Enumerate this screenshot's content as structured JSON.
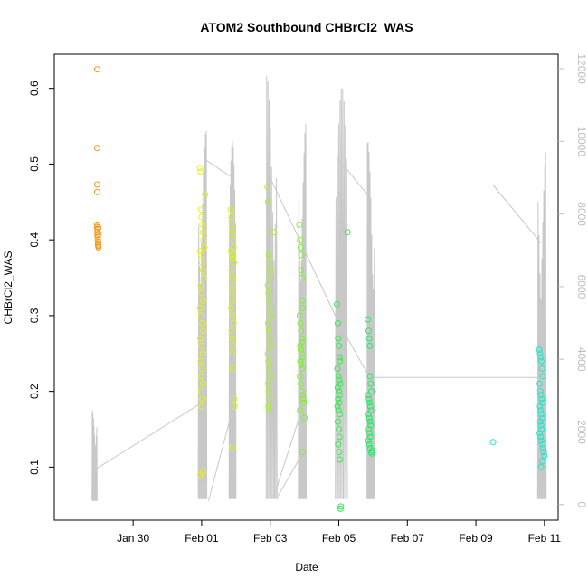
{
  "chart_data": {
    "type": "scatter",
    "title": "ATOM2 Southbound CHBrCl2_WAS",
    "xlabel": "Date",
    "ylabel": "CHBrCl2_WAS",
    "x_unit": "days since Jan 29 00:00",
    "xlim": [
      -1.3,
      13.4
    ],
    "ylim": [
      0.03,
      0.645
    ],
    "y2lim": [
      -430,
      12400
    ],
    "x_ticks": [
      {
        "value": 1,
        "label": "Jan 30"
      },
      {
        "value": 3,
        "label": "Feb 01"
      },
      {
        "value": 5,
        "label": "Feb 03"
      },
      {
        "value": 7,
        "label": "Feb 05"
      },
      {
        "value": 9,
        "label": "Feb 07"
      },
      {
        "value": 11,
        "label": "Feb 09"
      },
      {
        "value": 13,
        "label": "Feb 11"
      }
    ],
    "y_ticks": [
      {
        "value": 0.1,
        "label": "0.1"
      },
      {
        "value": 0.2,
        "label": "0.2"
      },
      {
        "value": 0.3,
        "label": "0.3"
      },
      {
        "value": 0.4,
        "label": "0.4"
      },
      {
        "value": 0.5,
        "label": "0.5"
      },
      {
        "value": 0.6,
        "label": "0.6"
      }
    ],
    "y2_ticks": [
      {
        "value": 0,
        "label": "0"
      },
      {
        "value": 2000,
        "label": "2000"
      },
      {
        "value": 4000,
        "label": "4000"
      },
      {
        "value": 6000,
        "label": "6000"
      },
      {
        "value": 8000,
        "label": "8000"
      },
      {
        "value": 10000,
        "label": "10000"
      },
      {
        "value": 12000,
        "label": "12000"
      }
    ],
    "grid": false,
    "legend": "none",
    "secondary_line_color": "#c8c8c8",
    "series": [
      {
        "color": "#f39a1e",
        "x": [
          -0.05,
          -0.05,
          -0.05,
          -0.05,
          -0.05,
          -0.05,
          -0.04,
          -0.04,
          -0.04,
          -0.03,
          -0.03,
          -0.02,
          -0.02,
          -0.02,
          -0.02,
          -0.01,
          -0.01,
          -0.01
        ],
        "y": [
          0.625,
          0.521,
          0.473,
          0.463,
          0.42,
          0.417,
          0.414,
          0.41,
          0.406,
          0.404,
          0.4,
          0.397,
          0.395,
          0.393,
          0.392,
          0.39,
          0.416,
          0.408
        ]
      },
      {
        "color": "#e9f50a",
        "x": [
          2.95,
          2.97,
          2.98,
          3.0,
          3.02,
          3.03,
          3.05,
          3.07,
          2.96,
          2.99,
          3.01,
          3.04,
          3.06,
          2.97,
          3.0,
          3.03,
          2.95,
          2.98,
          3.02,
          3.05,
          2.96,
          3.0,
          3.04,
          2.97,
          3.01,
          2.98,
          3.03,
          2.99,
          3.02,
          3.0,
          3.1,
          2.96,
          3.04
        ],
        "y": [
          0.495,
          0.49,
          0.44,
          0.43,
          0.42,
          0.41,
          0.4,
          0.39,
          0.385,
          0.38,
          0.37,
          0.36,
          0.35,
          0.34,
          0.33,
          0.32,
          0.31,
          0.3,
          0.29,
          0.28,
          0.27,
          0.26,
          0.25,
          0.24,
          0.23,
          0.22,
          0.21,
          0.2,
          0.19,
          0.18,
          0.46,
          0.09,
          0.093
        ]
      },
      {
        "color": "#d7f515",
        "x": [
          3.85,
          3.87,
          3.88,
          3.9,
          3.92,
          3.93,
          3.86,
          3.89,
          3.91,
          3.94,
          3.87,
          3.9,
          3.92,
          3.88,
          3.91,
          3.86,
          3.89,
          3.93,
          3.87,
          3.9,
          3.92,
          3.88,
          3.91,
          3.95,
          3.96,
          3.89
        ],
        "y": [
          0.44,
          0.43,
          0.42,
          0.41,
          0.4,
          0.39,
          0.385,
          0.38,
          0.375,
          0.37,
          0.36,
          0.35,
          0.34,
          0.33,
          0.32,
          0.31,
          0.3,
          0.29,
          0.28,
          0.27,
          0.26,
          0.25,
          0.23,
          0.19,
          0.18,
          0.125
        ]
      },
      {
        "color": "#a8f226",
        "x": [
          4.92,
          4.94,
          4.96,
          4.98,
          5.0,
          5.02,
          4.93,
          4.95,
          4.97,
          4.99,
          5.01,
          4.94,
          4.96,
          4.98,
          5.0,
          4.93,
          4.95,
          4.97,
          5.0,
          4.94,
          4.96,
          4.98,
          4.95,
          4.97,
          5.1
        ],
        "y": [
          0.47,
          0.45,
          0.38,
          0.37,
          0.36,
          0.35,
          0.34,
          0.33,
          0.32,
          0.31,
          0.3,
          0.29,
          0.28,
          0.27,
          0.26,
          0.25,
          0.24,
          0.23,
          0.22,
          0.21,
          0.2,
          0.19,
          0.18,
          0.175,
          0.41
        ]
      },
      {
        "color": "#7ef130",
        "x": [
          5.85,
          5.87,
          5.89,
          5.91,
          5.93,
          5.95,
          5.86,
          5.88,
          5.9,
          5.92,
          5.94,
          5.87,
          5.89,
          5.91,
          5.93,
          5.88,
          5.9,
          5.92,
          5.86,
          5.89,
          5.91,
          5.94,
          5.96,
          5.98,
          6.0,
          5.9,
          5.93,
          5.87,
          5.95
        ],
        "y": [
          0.42,
          0.4,
          0.39,
          0.38,
          0.35,
          0.31,
          0.3,
          0.29,
          0.28,
          0.27,
          0.265,
          0.26,
          0.255,
          0.25,
          0.245,
          0.24,
          0.235,
          0.23,
          0.22,
          0.21,
          0.2,
          0.195,
          0.19,
          0.185,
          0.165,
          0.36,
          0.32,
          0.175,
          0.12
        ]
      },
      {
        "color": "#30ef4a",
        "x": [
          6.95,
          6.97,
          6.98,
          7.0,
          7.02,
          7.03,
          6.96,
          6.99,
          7.01,
          7.04,
          6.97,
          7.0,
          7.02,
          6.98,
          7.01,
          6.96,
          6.99,
          7.03,
          6.97,
          7.0,
          7.02,
          6.98,
          7.01,
          7.03,
          7.25,
          7.05,
          7.06
        ],
        "y": [
          0.315,
          0.29,
          0.27,
          0.26,
          0.245,
          0.24,
          0.23,
          0.22,
          0.215,
          0.21,
          0.205,
          0.2,
          0.195,
          0.19,
          0.185,
          0.18,
          0.175,
          0.17,
          0.16,
          0.15,
          0.14,
          0.13,
          0.12,
          0.11,
          0.41,
          0.045,
          0.048
        ]
      },
      {
        "color": "#22ec66",
        "x": [
          7.85,
          7.87,
          7.89,
          7.91,
          7.93,
          7.95,
          7.86,
          7.88,
          7.9,
          7.92,
          7.94,
          7.87,
          7.89,
          7.91,
          7.93,
          7.88,
          7.9,
          7.92,
          7.86,
          7.89,
          7.91,
          7.94,
          7.96,
          7.98,
          7.9
        ],
        "y": [
          0.295,
          0.28,
          0.27,
          0.22,
          0.21,
          0.2,
          0.195,
          0.19,
          0.185,
          0.18,
          0.175,
          0.17,
          0.165,
          0.16,
          0.155,
          0.15,
          0.145,
          0.14,
          0.135,
          0.13,
          0.125,
          0.12,
          0.118,
          0.122,
          0.26
        ]
      },
      {
        "color": "#1ce9c8",
        "x": [
          11.5,
          12.85,
          12.87,
          12.89,
          12.91,
          12.93,
          12.95,
          12.86,
          12.88,
          12.9,
          12.92,
          12.94,
          12.87,
          12.89,
          12.91,
          12.93,
          12.88,
          12.9,
          12.92,
          12.86,
          12.89,
          12.91,
          12.94,
          12.96,
          12.98,
          13.0,
          12.9,
          12.93
        ],
        "y": [
          0.133,
          0.255,
          0.25,
          0.245,
          0.24,
          0.23,
          0.22,
          0.21,
          0.2,
          0.195,
          0.19,
          0.185,
          0.18,
          0.175,
          0.17,
          0.165,
          0.16,
          0.155,
          0.15,
          0.145,
          0.14,
          0.135,
          0.13,
          0.125,
          0.12,
          0.115,
          0.1,
          0.108
        ]
      }
    ],
    "secondary_series": {
      "name": "",
      "axis": "right",
      "bursts": [
        {
          "x0": -0.2,
          "x1": -0.05,
          "ymin": 100,
          "ymax": 2600
        },
        {
          "x0": 2.9,
          "x1": 3.15,
          "ymin": 150,
          "ymax": 10300
        },
        {
          "x0": 3.8,
          "x1": 4.0,
          "ymin": 150,
          "ymax": 10000
        },
        {
          "x0": 4.88,
          "x1": 5.2,
          "ymin": 150,
          "ymax": 11800
        },
        {
          "x0": 5.82,
          "x1": 6.05,
          "ymin": 150,
          "ymax": 10500
        },
        {
          "x0": 6.9,
          "x1": 7.25,
          "ymin": 150,
          "ymax": 11500
        },
        {
          "x0": 7.82,
          "x1": 8.05,
          "ymin": 150,
          "ymax": 10000
        },
        {
          "x0": 12.8,
          "x1": 13.05,
          "ymin": 150,
          "ymax": 9800
        }
      ],
      "connectors": [
        [
          [
            -0.05,
            1000
          ],
          [
            3.0,
            2800
          ]
        ],
        [
          [
            3.1,
            9500
          ],
          [
            3.9,
            9000
          ]
        ],
        [
          [
            3.2,
            100
          ],
          [
            3.95,
            2800
          ]
        ],
        [
          [
            5.0,
            9000
          ],
          [
            7.0,
            5000
          ],
          [
            7.9,
            3500
          ],
          [
            12.9,
            3500
          ]
        ],
        [
          [
            5.1,
            200
          ],
          [
            5.95,
            2700
          ]
        ],
        [
          [
            5.2,
            200
          ],
          [
            6.0,
            1500
          ]
        ],
        [
          [
            7.0,
            9500
          ],
          [
            7.95,
            8400
          ]
        ],
        [
          [
            11.5,
            8800
          ],
          [
            12.9,
            7200
          ]
        ]
      ]
    }
  }
}
